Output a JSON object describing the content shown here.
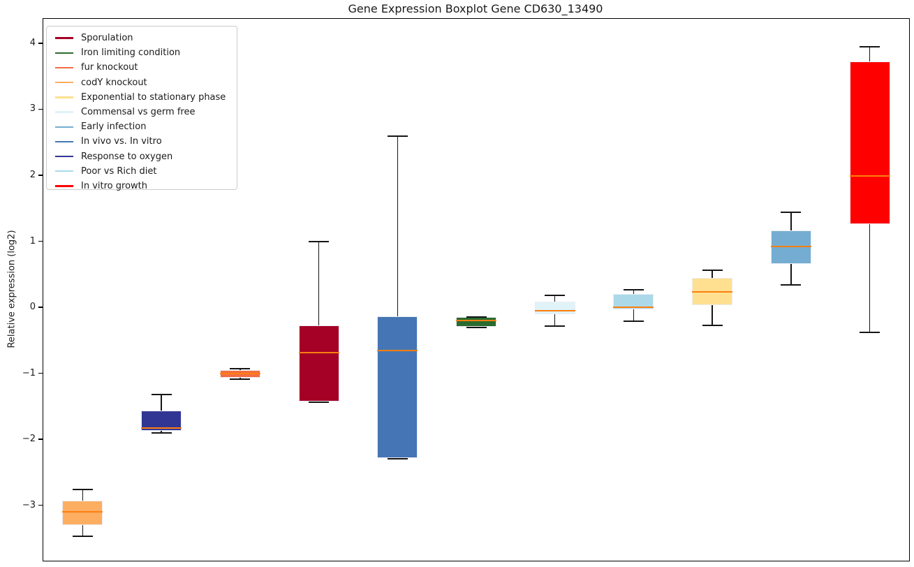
{
  "title": "Gene Expression Boxplot Gene CD630_13490",
  "ylabel": "Relative expression (log2)",
  "chart_data": {
    "type": "boxplot",
    "title": "Gene Expression Boxplot Gene CD630_13490",
    "xlabel": "",
    "ylabel": "Relative expression (log2)",
    "ylim": [
      -3.84,
      4.37
    ],
    "yticks": [
      -3,
      -2,
      -1,
      0,
      1,
      2,
      3,
      4
    ],
    "grid": false,
    "legend_position": "upper left",
    "median_color": "#ff7f0e",
    "whisker_color": "#151515",
    "box_edge_color": "#ecedf5",
    "legend": [
      {
        "label": "Sporulation",
        "color": "#a50026"
      },
      {
        "label": "Iron limiting condition",
        "color": "#2a6b2f"
      },
      {
        "label": "fur knockout",
        "color": "#f46d43"
      },
      {
        "label": "codY knockout",
        "color": "#fdae61"
      },
      {
        "label": "Exponential to stationary phase",
        "color": "#fee090"
      },
      {
        "label": "Commensal vs germ free",
        "color": "#e0f3f8"
      },
      {
        "label": "Early infection",
        "color": "#74add1"
      },
      {
        "label": "In vivo vs. In vitro",
        "color": "#4575b4"
      },
      {
        "label": "Response to oxygen",
        "color": "#313695"
      },
      {
        "label": "Poor vs Rich diet",
        "color": "#abd9e9"
      },
      {
        "label": "In vitro growth",
        "color": "#ff0000"
      }
    ],
    "boxes": [
      {
        "label": "codY knockout",
        "color": "#fdae61",
        "whislo": -3.47,
        "q1": -3.3,
        "med": -3.1,
        "q3": -2.93,
        "whishi": -2.76
      },
      {
        "label": "Response to oxygen",
        "color": "#313695",
        "whislo": -1.9,
        "q1": -1.87,
        "med": -1.83,
        "q3": -1.57,
        "whishi": -1.32
      },
      {
        "label": "fur knockout",
        "color": "#f46d43",
        "whislo": -1.09,
        "q1": -1.07,
        "med": -1.0,
        "q3": -0.95,
        "whishi": -0.93
      },
      {
        "label": "Sporulation",
        "color": "#a50026",
        "whislo": -1.44,
        "q1": -1.43,
        "med": -0.69,
        "q3": -0.27,
        "whishi": 1.0
      },
      {
        "label": "In vivo vs. In vitro",
        "color": "#4575b4",
        "whislo": -2.3,
        "q1": -2.29,
        "med": -0.66,
        "q3": -0.14,
        "whishi": 2.59
      },
      {
        "label": "Iron limiting condition",
        "color": "#2a6b2f",
        "whislo": -0.31,
        "q1": -0.3,
        "med": -0.2,
        "q3": -0.15,
        "whishi": -0.15
      },
      {
        "label": "Commensal vs germ free",
        "color": "#e0f3f8",
        "whislo": -0.28,
        "q1": -0.11,
        "med": -0.05,
        "q3": 0.09,
        "whishi": 0.18
      },
      {
        "label": "Poor vs Rich diet",
        "color": "#abd9e9",
        "whislo": -0.21,
        "q1": -0.03,
        "med": 0.0,
        "q3": 0.2,
        "whishi": 0.26
      },
      {
        "label": "Exponential to stationary phase",
        "color": "#fee090",
        "whislo": -0.27,
        "q1": 0.03,
        "med": 0.23,
        "q3": 0.45,
        "whishi": 0.56
      },
      {
        "label": "Early infection",
        "color": "#74add1",
        "whislo": 0.34,
        "q1": 0.66,
        "med": 0.92,
        "q3": 1.16,
        "whishi": 1.44
      },
      {
        "label": "In vitro growth",
        "color": "#ff0000",
        "whislo": -0.38,
        "q1": 1.26,
        "med": 1.99,
        "q3": 3.72,
        "whishi": 3.95
      }
    ]
  }
}
